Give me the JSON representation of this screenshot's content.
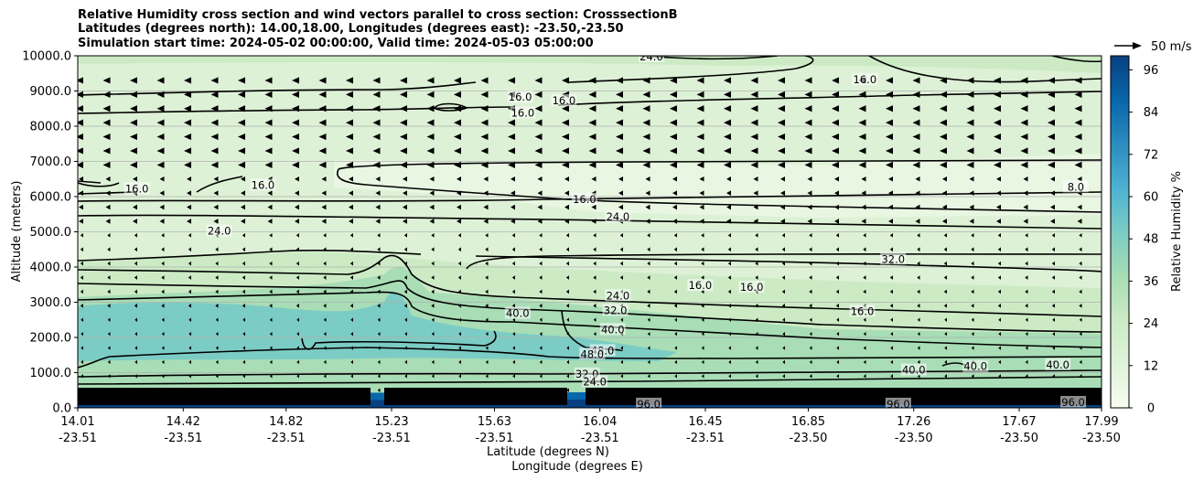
{
  "chart_data": {
    "type": "contour",
    "title_lines": [
      "Relative Humidity cross section and wind vectors parallel to cross section: CrosssectionB",
      "Latitudes (degrees north): 14.00,18.00, Longitudes (degrees east): -23.50,-23.50",
      "Simulation start time: 2024-05-02 00:00:00, Valid time: 2024-05-03 05:00:00"
    ],
    "xlabel": "Latitude (degrees N)",
    "xlabel2": "Longitude (degrees E)",
    "ylabel": "Altitude (meters)",
    "ylim": [
      0,
      10000
    ],
    "y_ticks": [
      "0.0",
      "1000.0",
      "2000.0",
      "3000.0",
      "4000.0",
      "5000.0",
      "6000.0",
      "7000.0",
      "8000.0",
      "9000.0",
      "10000.0"
    ],
    "x_ticks": [
      {
        "lat": "14.01",
        "lon": "-23.51"
      },
      {
        "lat": "14.42",
        "lon": "-23.51"
      },
      {
        "lat": "14.82",
        "lon": "-23.51"
      },
      {
        "lat": "15.23",
        "lon": "-23.51"
      },
      {
        "lat": "15.63",
        "lon": "-23.51"
      },
      {
        "lat": "16.04",
        "lon": "-23.51"
      },
      {
        "lat": "16.45",
        "lon": "-23.51"
      },
      {
        "lat": "16.85",
        "lon": "-23.50"
      },
      {
        "lat": "17.26",
        "lon": "-23.50"
      },
      {
        "lat": "17.67",
        "lon": "-23.50"
      },
      {
        "lat": "17.99",
        "lon": "-23.50"
      }
    ],
    "x_tick_positions": [
      14.01,
      14.42,
      14.82,
      15.23,
      15.63,
      16.04,
      16.45,
      16.85,
      17.26,
      17.67,
      17.99
    ],
    "xlim": [
      14.01,
      17.99
    ],
    "colorbar": {
      "label": "Relative Humidity %",
      "range": [
        0,
        100
      ],
      "ticks": [
        "0",
        "12",
        "24",
        "36",
        "48",
        "60",
        "72",
        "84",
        "96"
      ],
      "colormap": "GnBu"
    },
    "quiver_key": "50 m/s",
    "grid": "horizontal",
    "contour_labels": [
      {
        "text": "16.0",
        "lat": 15.73,
        "alt": 8800
      },
      {
        "text": "16.0",
        "lat": 15.74,
        "alt": 8350
      },
      {
        "text": "16.0",
        "lat": 15.9,
        "alt": 8700
      },
      {
        "text": "16.0",
        "lat": 14.24,
        "alt": 6200
      },
      {
        "text": "16.0",
        "lat": 14.73,
        "alt": 6300
      },
      {
        "text": "24.0",
        "lat": 14.56,
        "alt": 5000
      },
      {
        "text": "16.0",
        "lat": 15.98,
        "alt": 5900
      },
      {
        "text": "24.0",
        "lat": 16.11,
        "alt": 5400
      },
      {
        "text": "24.0",
        "lat": 16.11,
        "alt": 3160
      },
      {
        "text": "32.0",
        "lat": 16.1,
        "alt": 2740
      },
      {
        "text": "40.0",
        "lat": 15.72,
        "alt": 2660
      },
      {
        "text": "40.0",
        "lat": 16.09,
        "alt": 2200
      },
      {
        "text": "48.0",
        "lat": 16.05,
        "alt": 1600
      },
      {
        "text": "48.0",
        "lat": 16.01,
        "alt": 1500
      },
      {
        "text": "32.0",
        "lat": 15.99,
        "alt": 940
      },
      {
        "text": "24.0",
        "lat": 16.02,
        "alt": 720
      },
      {
        "text": "16.0",
        "lat": 16.43,
        "alt": 3450
      },
      {
        "text": "16.0",
        "lat": 16.63,
        "alt": 3400
      },
      {
        "text": "16.0",
        "lat": 17.06,
        "alt": 2720
      },
      {
        "text": "32.0",
        "lat": 17.18,
        "alt": 4200
      },
      {
        "text": "16.0",
        "lat": 17.07,
        "alt": 9300
      },
      {
        "text": "8.0",
        "lat": 17.89,
        "alt": 6250
      },
      {
        "text": "24.0",
        "lat": 16.24,
        "alt": 9950
      },
      {
        "text": "40.0",
        "lat": 17.26,
        "alt": 1050
      },
      {
        "text": "40.0",
        "lat": 17.5,
        "alt": 1150
      },
      {
        "text": "40.0",
        "lat": 17.82,
        "alt": 1200
      },
      {
        "text": "96.0",
        "lat": 16.23,
        "alt": 80
      },
      {
        "text": "96.0",
        "lat": 17.2,
        "alt": 80
      },
      {
        "text": "96.0",
        "lat": 17.88,
        "alt": 130
      }
    ]
  }
}
